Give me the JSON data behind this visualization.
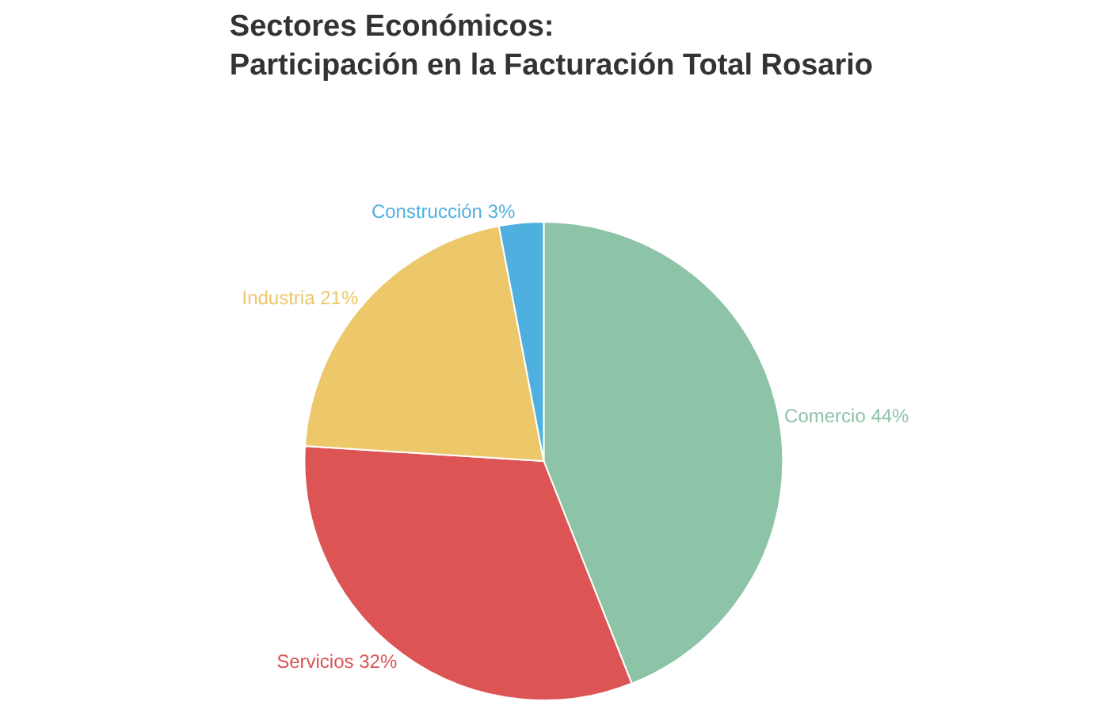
{
  "chart_data": {
    "type": "pie",
    "title": "Sectores Económicos:\nParticipación en la Facturación Total Rosario",
    "categories": [
      "Comercio",
      "Servicios",
      "Industria",
      "Construcción"
    ],
    "values": [
      44,
      32,
      21,
      3
    ],
    "colors": [
      "#8dc3a7",
      "#dc5454",
      "#ecc86a",
      "#4fb0e0"
    ],
    "value_labels": [
      "44%",
      "32%",
      "21%",
      "3%"
    ],
    "legend": false
  }
}
